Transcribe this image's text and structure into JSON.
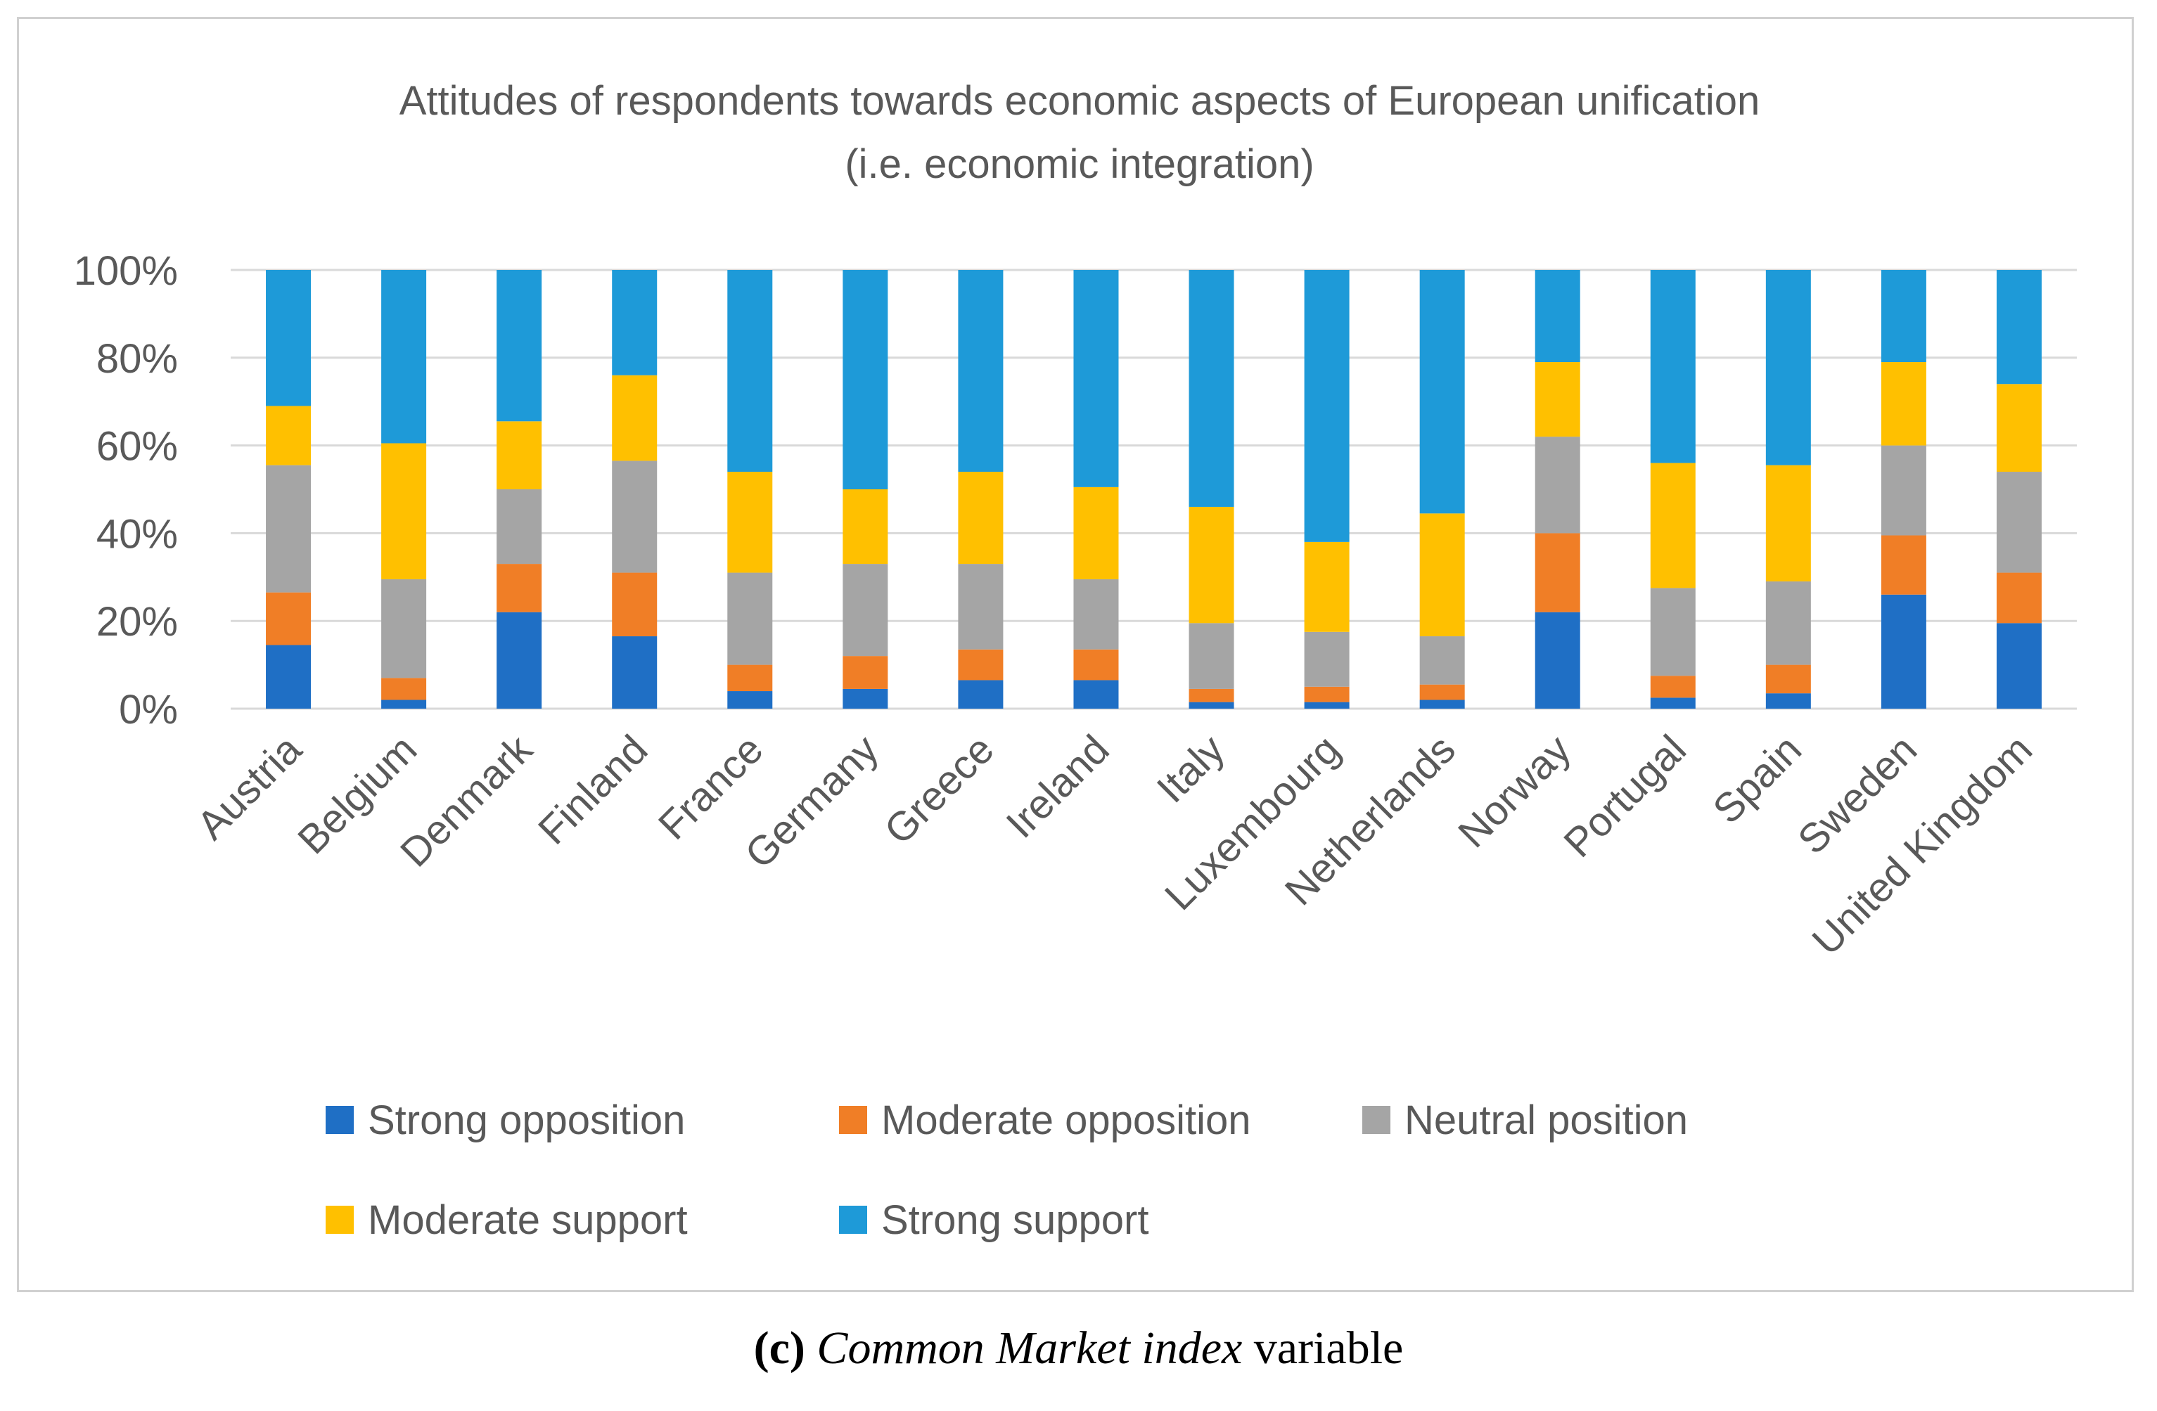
{
  "chart_data": {
    "type": "stacked-bar-100",
    "title": [
      "Attitudes of respondents towards economic aspects of European unification",
      "(i.e. economic integration)"
    ],
    "xlabel": "",
    "ylabel": "",
    "ylim": [
      0,
      100
    ],
    "yticks": [
      "0%",
      "20%",
      "40%",
      "60%",
      "80%",
      "100%"
    ],
    "grid": true,
    "legend_position": "bottom",
    "categories": [
      "Austria",
      "Belgium",
      "Denmark",
      "Finland",
      "France",
      "Germany",
      "Greece",
      "Ireland",
      "Italy",
      "Luxembourg",
      "Netherlands",
      "Norway",
      "Portugal",
      "Spain",
      "Sweden",
      "United Kingdom"
    ],
    "series": [
      {
        "name": "Strong opposition",
        "color": "#1f6fc5",
        "values": [
          14.5,
          2,
          22,
          16.5,
          4,
          4.5,
          6.5,
          6.5,
          1.5,
          1.5,
          2,
          22,
          2.5,
          3.5,
          26,
          19.5
        ]
      },
      {
        "name": "Moderate opposition",
        "color": "#f07e26",
        "values": [
          12,
          5,
          11,
          14.5,
          6,
          7.5,
          7,
          7,
          3,
          3.5,
          3.5,
          18,
          5,
          6.5,
          13.5,
          11.5
        ]
      },
      {
        "name": "Neutral position",
        "color": "#a5a5a5",
        "values": [
          29,
          22.5,
          17,
          25.5,
          21,
          21,
          19.5,
          16,
          15,
          12.5,
          11,
          22,
          20,
          19,
          20.5,
          23
        ]
      },
      {
        "name": "Moderate support",
        "color": "#ffc000",
        "values": [
          13.5,
          31,
          15.5,
          19.5,
          23,
          17,
          21,
          21,
          26.5,
          20.5,
          28,
          17,
          28.5,
          26.5,
          19,
          20
        ]
      },
      {
        "name": "Strong support",
        "color": "#1e9ad8",
        "values": [
          31,
          39.5,
          34.5,
          24,
          46,
          50,
          46,
          49.5,
          54,
          62,
          55.5,
          21,
          44,
          44.5,
          21,
          26
        ]
      }
    ]
  },
  "caption": {
    "letter": "(c)",
    "italic": "Common Market index",
    "rest": " variable"
  }
}
